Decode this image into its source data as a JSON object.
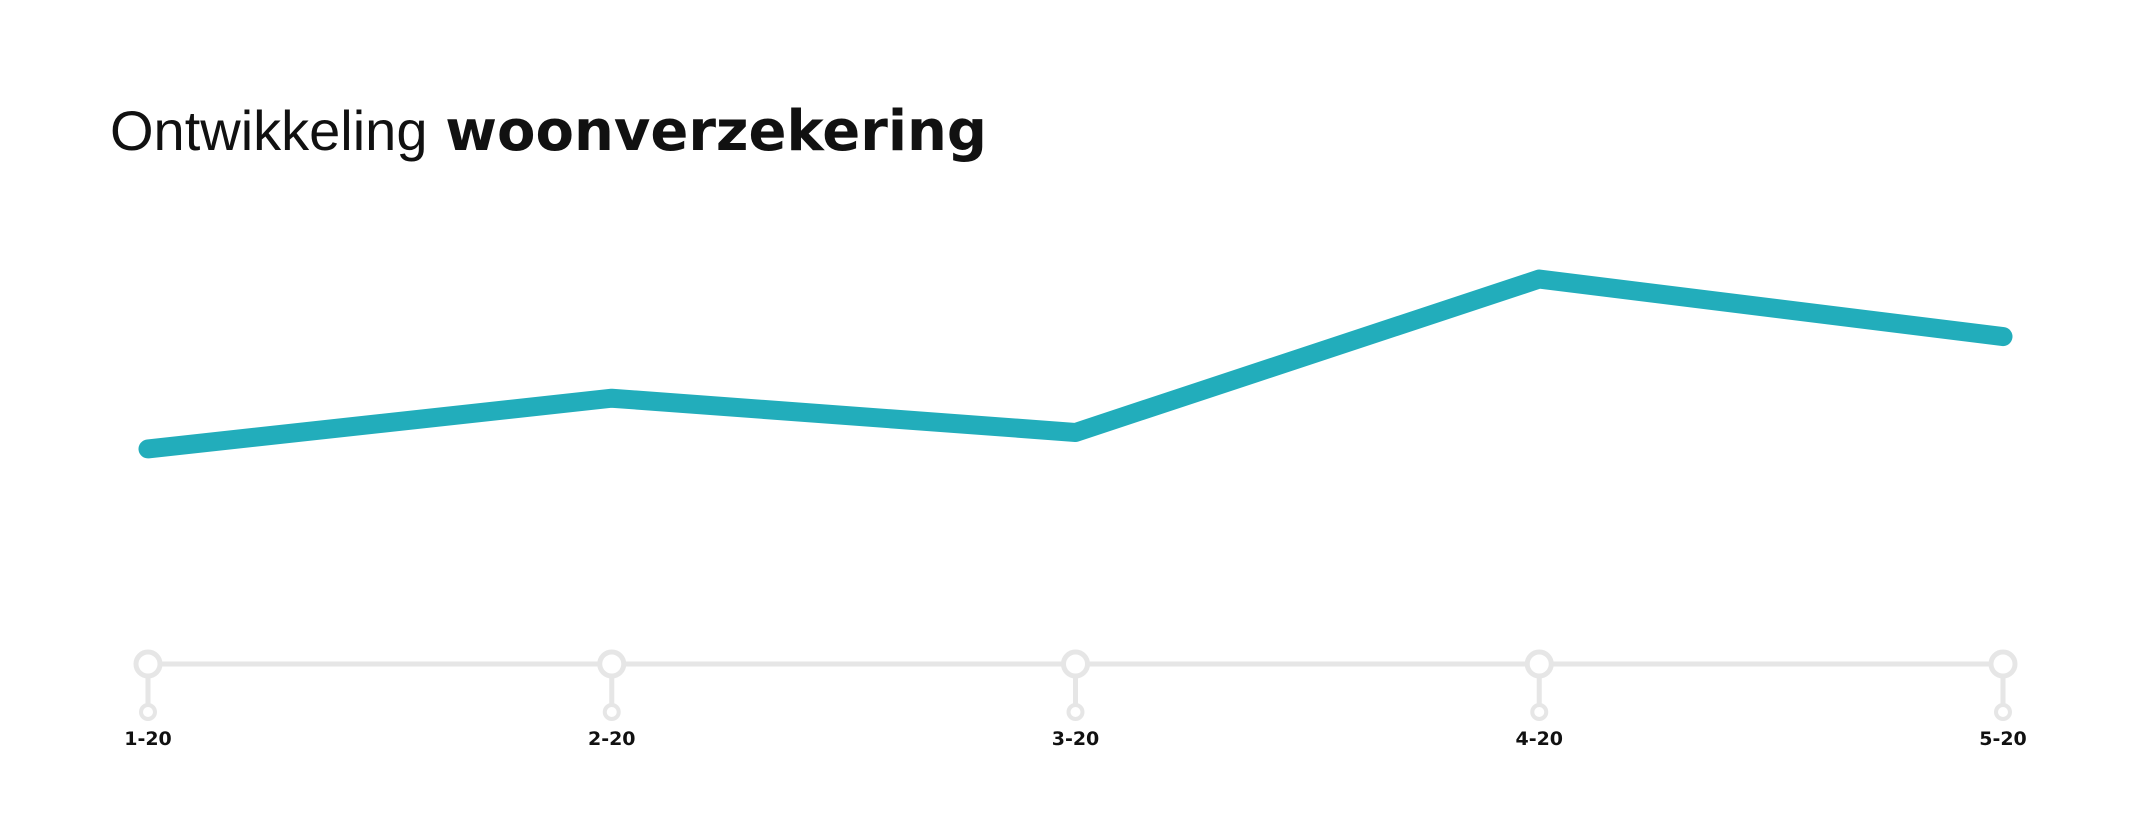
{
  "chart_data": {
    "type": "line",
    "title_light": "Ontwikkeling",
    "title_bold": "woonverzekering",
    "categories": [
      "1-20",
      "2-20",
      "3-20",
      "4-20",
      "5-20"
    ],
    "values": [
      157,
      194,
      169,
      281,
      239
    ],
    "color": "#22adbb",
    "ylim": [
      0,
      300
    ],
    "axis_color": "#e6e6e6"
  }
}
